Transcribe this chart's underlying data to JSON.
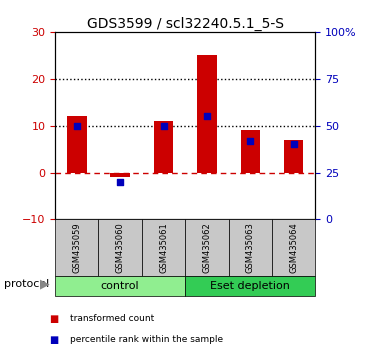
{
  "title": "GDS3599 / scl32240.5.1_5-S",
  "samples": [
    "GSM435059",
    "GSM435060",
    "GSM435061",
    "GSM435062",
    "GSM435063",
    "GSM435064"
  ],
  "red_bars": [
    12.0,
    -1.0,
    11.0,
    25.0,
    9.0,
    7.0
  ],
  "blue_squares_pct": [
    50,
    20,
    50,
    55,
    42,
    40
  ],
  "groups": [
    {
      "label": "control",
      "indices": [
        0,
        1,
        2
      ],
      "color": "#90EE90"
    },
    {
      "label": "Eset depletion",
      "indices": [
        3,
        4,
        5
      ],
      "color": "#33CC55"
    }
  ],
  "ylim_left": [
    -10,
    30
  ],
  "ylim_right": [
    0,
    100
  ],
  "yticks_left": [
    -10,
    0,
    10,
    20,
    30
  ],
  "yticks_right": [
    0,
    25,
    50,
    75,
    100
  ],
  "ytick_labels_right": [
    "0",
    "25",
    "50",
    "75",
    "100%"
  ],
  "hlines_black_dotted": [
    10,
    20
  ],
  "hline_red_dashed": 0,
  "bar_color": "#CC0000",
  "square_color": "#0000BB",
  "protocol_label": "protocol",
  "legend_items": [
    {
      "label": "transformed count",
      "color": "#CC0000"
    },
    {
      "label": "percentile rank within the sample",
      "color": "#0000BB"
    }
  ],
  "xlabel_area_color": "#C8C8C8",
  "title_fontsize": 10,
  "tick_fontsize": 8,
  "axis_label_color_left": "#CC0000",
  "axis_label_color_right": "#0000BB"
}
